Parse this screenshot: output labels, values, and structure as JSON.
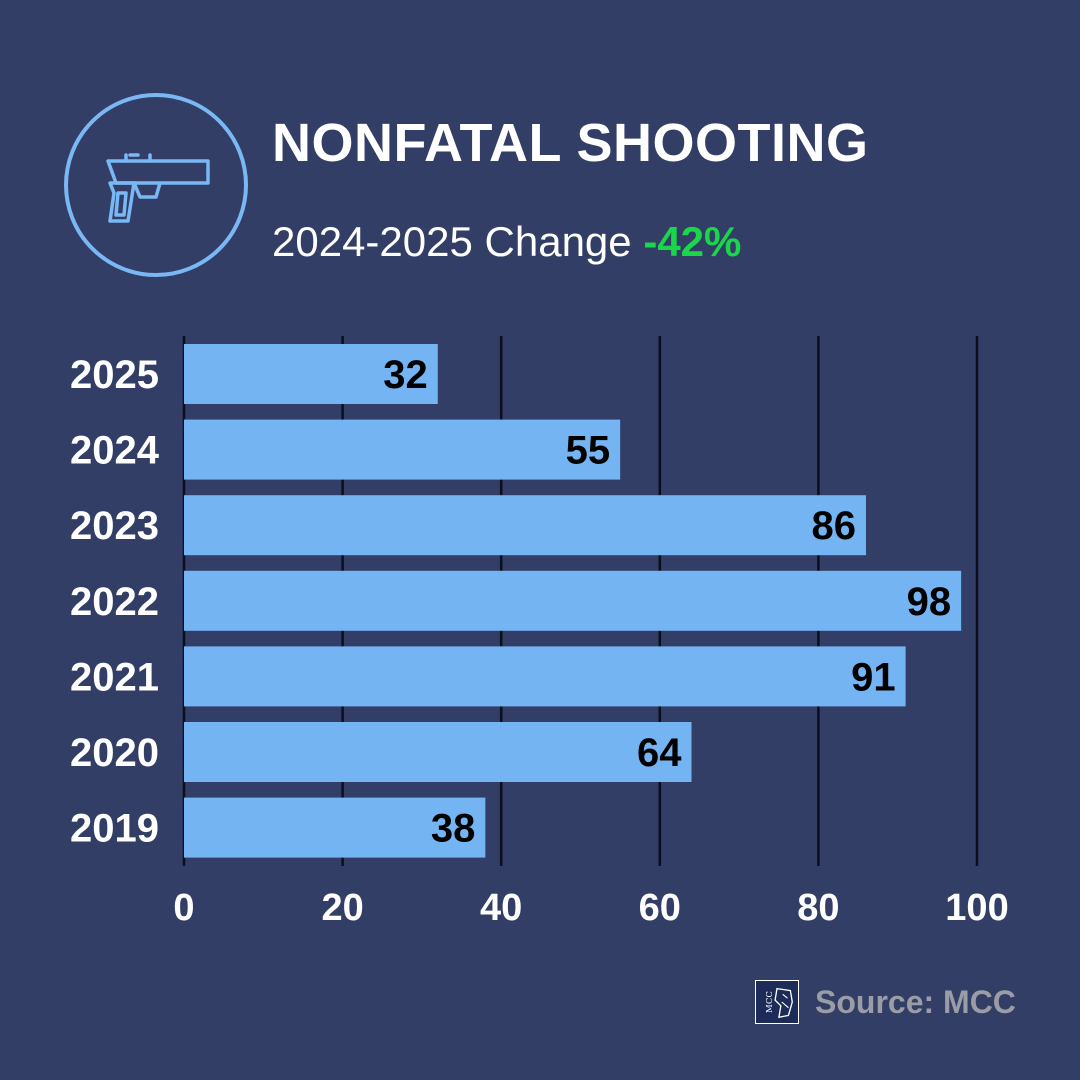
{
  "header": {
    "title": "NONFATAL SHOOTING",
    "subtitle_prefix": "2024-2025 Change",
    "change_value": "-42%",
    "icon": "pistol-icon"
  },
  "colors": {
    "background": "#323e66",
    "bar": "#74b4f2",
    "change_positive": "#19d64a",
    "icon_stroke": "#7ab8f5"
  },
  "chart_data": {
    "type": "bar",
    "orientation": "horizontal",
    "title": "NONFATAL SHOOTING",
    "categories": [
      "2025",
      "2024",
      "2023",
      "2022",
      "2021",
      "2020",
      "2019"
    ],
    "values": [
      32,
      55,
      86,
      98,
      91,
      64,
      38
    ],
    "xlim": [
      0,
      100
    ],
    "xticks": [
      0,
      20,
      40,
      60,
      80,
      100
    ],
    "grid": true,
    "data_labels": true
  },
  "footer": {
    "source": "Source: MCC",
    "logo_text": "MCC"
  }
}
